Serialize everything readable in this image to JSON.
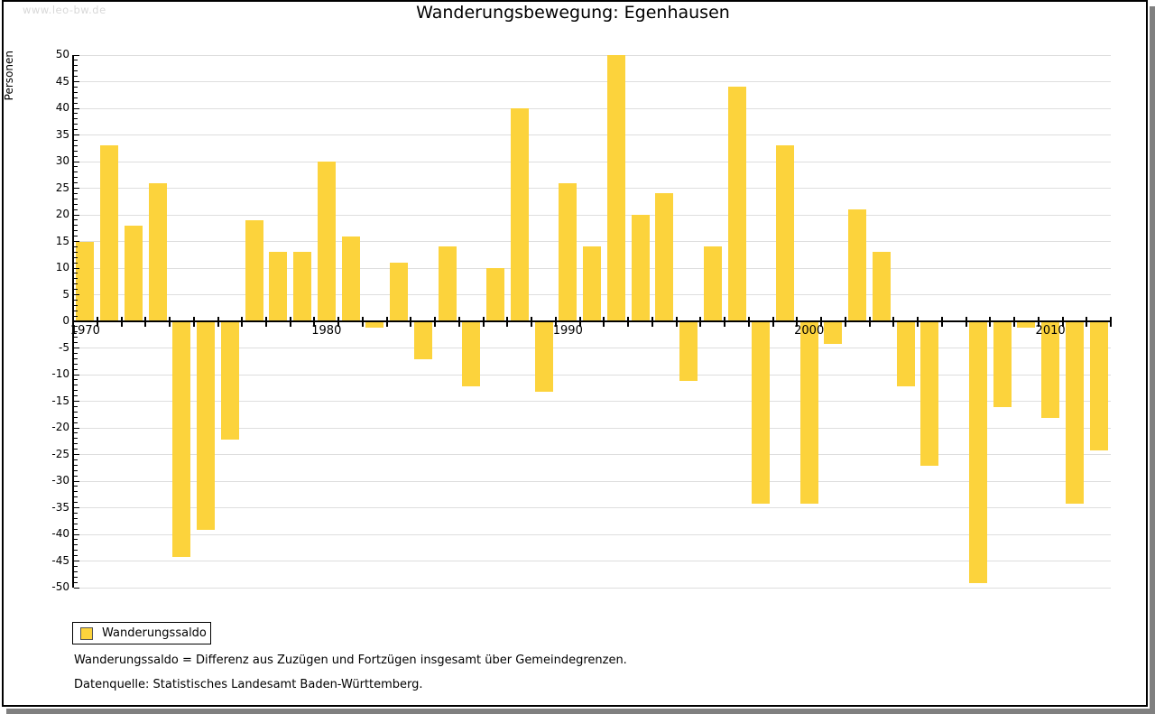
{
  "page": {
    "watermark": "www.leo-bw.de",
    "title": "Wanderungsbewegung: Egenhausen"
  },
  "legend": {
    "label": "Wanderungssaldo"
  },
  "footnotes": {
    "definition": "Wanderungssaldo = Differenz aus Zuzügen und Fortzügen insgesamt über Gemeindegrenzen.",
    "source": "Datenquelle: Statistisches Landesamt Baden-Württemberg."
  },
  "chart_data": {
    "type": "bar",
    "title": "Wanderungsbewegung: Egenhausen",
    "xlabel": "",
    "ylabel": "Personen",
    "x": [
      1970,
      1971,
      1972,
      1973,
      1974,
      1975,
      1976,
      1977,
      1978,
      1979,
      1980,
      1981,
      1982,
      1983,
      1984,
      1985,
      1986,
      1987,
      1988,
      1989,
      1990,
      1991,
      1992,
      1993,
      1994,
      1995,
      1996,
      1997,
      1998,
      1999,
      2000,
      2001,
      2002,
      2003,
      2004,
      2005,
      2006,
      2007,
      2008,
      2009,
      2010,
      2011,
      2012
    ],
    "series": [
      {
        "name": "Wanderungssaldo",
        "values": [
          15,
          33,
          18,
          26,
          -44,
          -39,
          -22,
          19,
          13,
          13,
          30,
          16,
          -1,
          11,
          -7,
          14,
          -12,
          10,
          40,
          -13,
          26,
          14,
          50,
          20,
          24,
          -11,
          14,
          44,
          -34,
          33,
          -34,
          -4,
          21,
          13,
          -12,
          -27,
          0,
          -49,
          -16,
          -1,
          -18,
          -34,
          -24
        ]
      }
    ],
    "ylim": [
      -50,
      50
    ],
    "y_tick_step_major": 5,
    "y_tick_step_minor": 1,
    "x_axis_labels": [
      1970,
      1980,
      1990,
      2000,
      2010
    ],
    "grid": true,
    "legend_position": "bottom-left",
    "colors": {
      "bar": "#FCD33C",
      "grid": "#DEDEDE",
      "axis": "#000000",
      "watermark": "#D8D8D8",
      "background": "#FFFFFF",
      "shadow": "#808080"
    }
  }
}
